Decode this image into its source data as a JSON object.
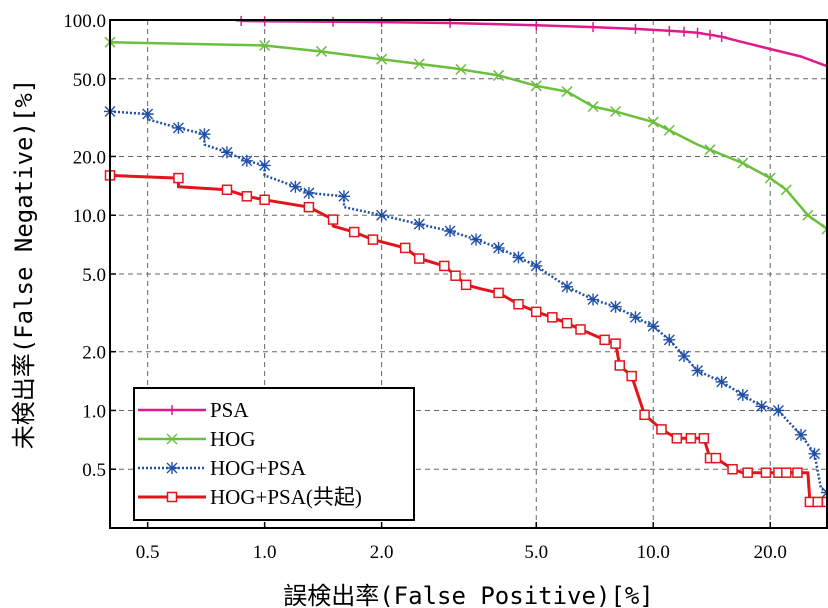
{
  "chart_data": {
    "type": "line",
    "xlabel": "誤検出率(False Positive)[%]",
    "ylabel": "未検出率(False Negative)[%]",
    "xscale": "log",
    "yscale": "log",
    "xlim": [
      0.4,
      28
    ],
    "ylim": [
      0.25,
      100
    ],
    "x_ticks": [
      "0.5",
      "1.0",
      "2.0",
      "5.0",
      "10.0",
      "20.0"
    ],
    "x_tick_values": [
      0.5,
      1,
      2,
      5,
      10,
      20
    ],
    "y_ticks": [
      "100.0",
      "50.0",
      "20.0",
      "10.0",
      "5.0",
      "2.0",
      "1.0",
      "0.5"
    ],
    "y_tick_values": [
      100,
      50,
      20,
      10,
      5,
      2,
      1,
      0.5
    ],
    "grid": true,
    "legend_position": "bottom-left",
    "series": [
      {
        "name": "PSA",
        "color": "#e0198c",
        "marker": "plus",
        "x": [
          0.87,
          1.0,
          1.5,
          2.0,
          3.0,
          5.0,
          7.0,
          9.0,
          10.0,
          11.0,
          12.0,
          13.0,
          14.0,
          15.0,
          17.0,
          20.0,
          24.0,
          28.0
        ],
        "y": [
          99,
          98.5,
          98,
          97.5,
          96.5,
          94,
          92,
          90,
          89,
          88,
          87,
          86,
          84,
          82,
          77,
          71,
          65,
          58
        ],
        "markers": [
          0.87,
          1.0,
          1.5,
          2.0,
          3.0,
          5.0,
          7.0,
          9.0,
          11.0,
          12.0,
          13.0,
          14.0,
          15.0
        ]
      },
      {
        "name": "HOG",
        "color": "#6abf3c",
        "marker": "x",
        "x": [
          0.4,
          1.0,
          1.4,
          2.0,
          3.0,
          4.0,
          5.0,
          6.0,
          7.0,
          8.0,
          10.0,
          13.0,
          17.0,
          20.0,
          22.0,
          25.0,
          28.0
        ],
        "y": [
          77,
          74,
          69,
          63,
          57,
          52,
          46,
          43,
          36,
          34,
          30,
          23,
          18.5,
          15.5,
          13.5,
          10,
          8.5
        ],
        "markers": [
          0.4,
          1.0,
          1.4,
          2.0,
          2.5,
          3.2,
          4.0,
          5.0,
          6.0,
          7.0,
          8.0,
          10.0,
          11.0,
          14.0,
          17.0,
          20.0,
          22.0,
          25.0,
          28.0
        ]
      },
      {
        "name": "HOG+PSA",
        "color": "#1f4fa6",
        "marker": "star",
        "x": [
          0.4,
          0.5,
          0.5,
          0.6,
          0.7,
          0.7,
          0.8,
          0.9,
          1.0,
          1.0,
          1.2,
          1.3,
          1.6,
          1.6,
          2.0,
          2.5,
          3.0,
          3.5,
          4.0,
          5.0,
          6.0,
          7.0,
          8.0,
          9.0,
          10.0,
          11.0,
          12.0,
          13.0,
          15.0,
          17.0,
          19.0,
          21.0,
          22.0,
          24.0,
          26.0,
          27.0,
          28.0
        ],
        "y": [
          34,
          33,
          31,
          28,
          26,
          23,
          21,
          19,
          18,
          16,
          14,
          13,
          12.5,
          11,
          10,
          9,
          8.3,
          7.5,
          6.8,
          5.5,
          4.3,
          3.7,
          3.4,
          3.0,
          2.7,
          2.3,
          1.9,
          1.6,
          1.4,
          1.2,
          1.05,
          1.0,
          0.9,
          0.75,
          0.6,
          0.4,
          0.38
        ],
        "markers": [
          0.4,
          0.5,
          0.6,
          0.7,
          0.8,
          0.9,
          1.0,
          1.2,
          1.3,
          1.6,
          2.0,
          2.5,
          3.0,
          3.5,
          4.0,
          4.5,
          5.0,
          6.0,
          7.0,
          8.0,
          9.0,
          10.0,
          11.0,
          12.0,
          13.0,
          15.0,
          17.0,
          19.0,
          21.0,
          24.0,
          26.0,
          28.0
        ]
      },
      {
        "name": "HOG+PSA(共起)",
        "color": "#e3141b",
        "marker": "square",
        "x": [
          0.4,
          0.6,
          0.6,
          0.8,
          0.9,
          1.0,
          1.3,
          1.5,
          1.5,
          1.7,
          1.9,
          2.3,
          2.5,
          2.9,
          3.1,
          3.3,
          3.6,
          4.0,
          4.5,
          5.0,
          5.5,
          6.0,
          6.5,
          7.5,
          8.0,
          8.2,
          8.8,
          9.5,
          10.5,
          11.5,
          12.5,
          13.5,
          14.0,
          14.5,
          16.0,
          17.0,
          18.0,
          19.5,
          21.0,
          22.0,
          25.0,
          25.3,
          28.0
        ],
        "y": [
          16,
          15.5,
          14,
          13.5,
          12.5,
          12,
          11,
          9.5,
          8.8,
          8.2,
          7.5,
          6.8,
          6.0,
          5.5,
          4.9,
          4.4,
          4.2,
          4.0,
          3.5,
          3.2,
          3.0,
          2.8,
          2.6,
          2.3,
          2.2,
          1.7,
          1.5,
          0.95,
          0.8,
          0.72,
          0.72,
          0.72,
          0.57,
          0.57,
          0.5,
          0.48,
          0.48,
          0.48,
          0.48,
          0.48,
          0.48,
          0.34,
          0.34
        ],
        "markers": [
          0.4,
          0.6,
          0.8,
          0.9,
          1.0,
          1.3,
          1.5,
          1.7,
          1.9,
          2.3,
          2.5,
          2.9,
          3.1,
          3.3,
          4.0,
          4.5,
          5.0,
          5.5,
          6.0,
          6.5,
          7.5,
          8.0,
          8.2,
          8.8,
          9.5,
          10.5,
          11.5,
          12.5,
          13.5,
          14.0,
          14.5,
          16.0,
          17.5,
          19.5,
          21.0,
          22.0,
          23.5,
          25.3,
          26.5,
          28.0
        ]
      }
    ]
  }
}
